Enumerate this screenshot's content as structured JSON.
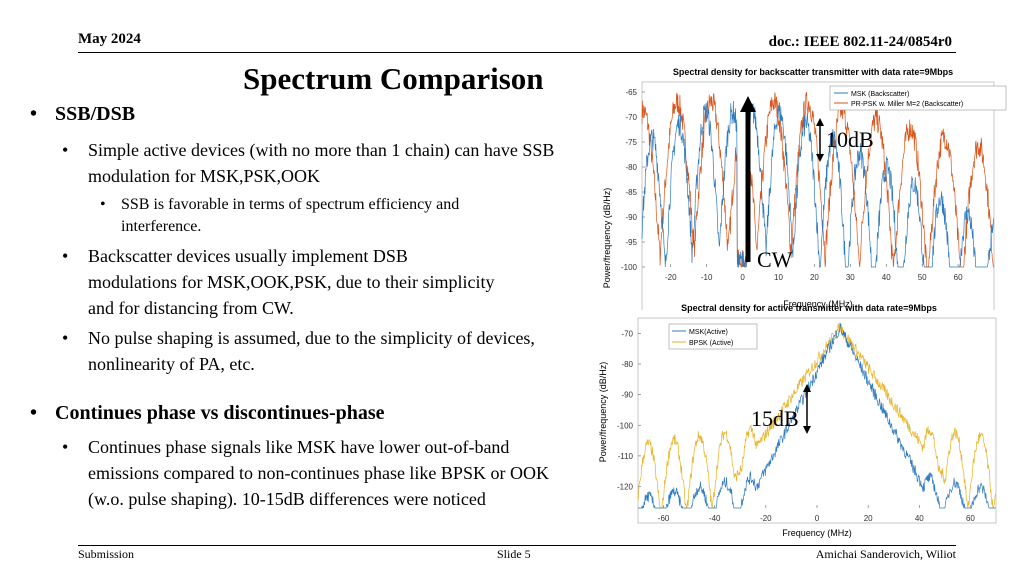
{
  "header": {
    "date": "May 2024",
    "doc": "doc.: IEEE 802.11-24/0854r0"
  },
  "slide_title": "Spectrum Comparison",
  "bullets": {
    "b1": "SSB/DSB",
    "b1_1": "Simple active devices (with no more than 1 chain) can have SSB modulation for MSK,PSK,OOK",
    "b1_1_1": "SSB is favorable in terms of spectrum efficiency and interference.",
    "b1_2": "Backscatter devices usually implement DSB modulations for MSK,OOK,PSK, due to their simplicity and for distancing from CW.",
    "b1_3": "No pulse shaping is assumed, due to the simplicity of devices, nonlinearity of PA, etc.",
    "b2": "Continues phase vs discontinues-phase",
    "b2_1": "Continues phase signals like MSK have lower out-of-band emissions compared to non-continues phase like BPSK or OOK (w.o. pulse shaping). 10-15dB differences were noticed"
  },
  "footer": {
    "left": "Submission",
    "center": "Slide 5",
    "right": "Amichai Sanderovich, Wiliot"
  },
  "annotations": {
    "ann_10db": "10dB",
    "ann_cw": "CW",
    "ann_15db": "15dB"
  },
  "colors": {
    "blue": "#2f7bbf",
    "orange": "#d9541a",
    "yellow": "#e8b224"
  },
  "chart_data": [
    {
      "type": "line",
      "title": "Spectral density for backscatter transmitter with data rate=9Mbps",
      "xlabel": "Frequency (MHz)",
      "ylabel": "Power/frequency (dB/Hz)",
      "xlim": [
        -28,
        70
      ],
      "ylim": [
        -100,
        -63
      ],
      "xticks": [
        -20,
        -10,
        0,
        10,
        20,
        30,
        40,
        50,
        60
      ],
      "yticks": [
        -65,
        -70,
        -75,
        -80,
        -85,
        -90,
        -95,
        -100
      ],
      "legend_position": "top-right",
      "series": [
        {
          "name": "MSK (Backscatter)",
          "color": "#2f7bbf",
          "description_points": {
            "x": [
              -25,
              -13.5,
              -6,
              0,
              6,
              13.5,
              22,
              31,
              40,
              49,
              58,
              67
            ],
            "y": [
              -95,
              -72,
              -69,
              -99,
              -69,
              -72,
              -80,
              -85,
              -88,
              -91,
              -93,
              -95
            ]
          }
        },
        {
          "name": "PR-PSK w. Miller M=2 (Backscatter)",
          "color": "#d9541a",
          "description_points": {
            "x": [
              -25,
              -19,
              -9,
              0,
              9,
              19,
              28,
              37,
              46,
              55,
              64
            ],
            "y": [
              -88,
              -67,
              -67,
              -99,
              -67,
              -67,
              -73,
              -77,
              -79,
              -82,
              -84
            ]
          }
        }
      ]
    },
    {
      "type": "line",
      "title": "Spectral density for active transmitter with data rate=9Mbps",
      "xlabel": "Frequency (MHz)",
      "ylabel": "Power/frequency (dB/Hz)",
      "xlim": [
        -70,
        70
      ],
      "ylim": [
        -127,
        -65
      ],
      "xticks": [
        -60,
        -40,
        -20,
        0,
        20,
        40,
        60
      ],
      "yticks": [
        -70,
        -80,
        -90,
        -100,
        -110,
        -120
      ],
      "legend_position": "top-left",
      "series": [
        {
          "name": "MSK(Active)",
          "color": "#2f7bbf"
        },
        {
          "name": "BPSK (Active)",
          "color": "#e8b224"
        }
      ]
    }
  ]
}
